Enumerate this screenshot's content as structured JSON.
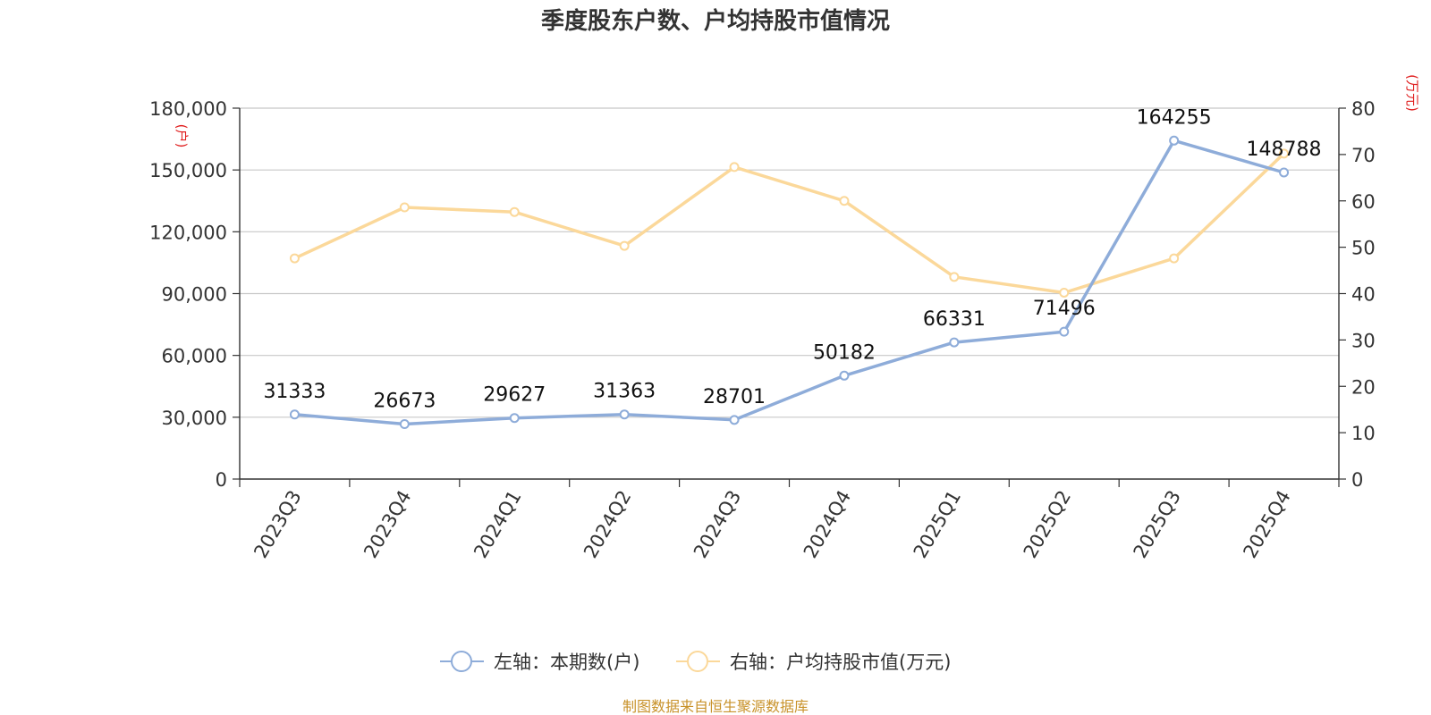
{
  "chart_data": {
    "type": "line",
    "title": "季度股东户数、户均持股市值情况",
    "categories": [
      "2023Q3",
      "2023Q4",
      "2024Q1",
      "2024Q2",
      "2024Q3",
      "2024Q4",
      "2025Q1",
      "2025Q2",
      "2025Q3",
      "2025Q4"
    ],
    "y_left": {
      "unit": "(户)",
      "ylim": [
        0,
        180000
      ],
      "ticks": [
        "0",
        "30,000",
        "60,000",
        "90,000",
        "120,000",
        "150,000",
        "180,000"
      ],
      "tick_values": [
        0,
        30000,
        60000,
        90000,
        120000,
        150000,
        180000
      ]
    },
    "y_right": {
      "unit": "(万元)",
      "ylim": [
        0,
        80
      ],
      "ticks": [
        "0",
        "10",
        "20",
        "30",
        "40",
        "50",
        "60",
        "70",
        "80"
      ],
      "tick_values": [
        0,
        10,
        20,
        30,
        40,
        50,
        60,
        70,
        80
      ]
    },
    "series": [
      {
        "name": "左轴：本期数(户)",
        "axis": "left",
        "color": "#8eacd9",
        "values": [
          31333,
          26673,
          29627,
          31363,
          28701,
          50182,
          66331,
          71496,
          164255,
          148788
        ],
        "labels": [
          "31333",
          "26673",
          "29627",
          "31363",
          "28701",
          "50182",
          "66331",
          "71496",
          "164255",
          "148788"
        ]
      },
      {
        "name": "右轴：户均持股市值(万元)",
        "axis": "right",
        "color": "#fbd89a",
        "values": [
          47.6,
          58.6,
          57.6,
          50.3,
          67.3,
          60.0,
          43.6,
          40.2,
          47.6,
          70.2
        ]
      }
    ],
    "grid": true,
    "legend_position": "bottom-center",
    "source": "制图数据来自恒生聚源数据库"
  }
}
